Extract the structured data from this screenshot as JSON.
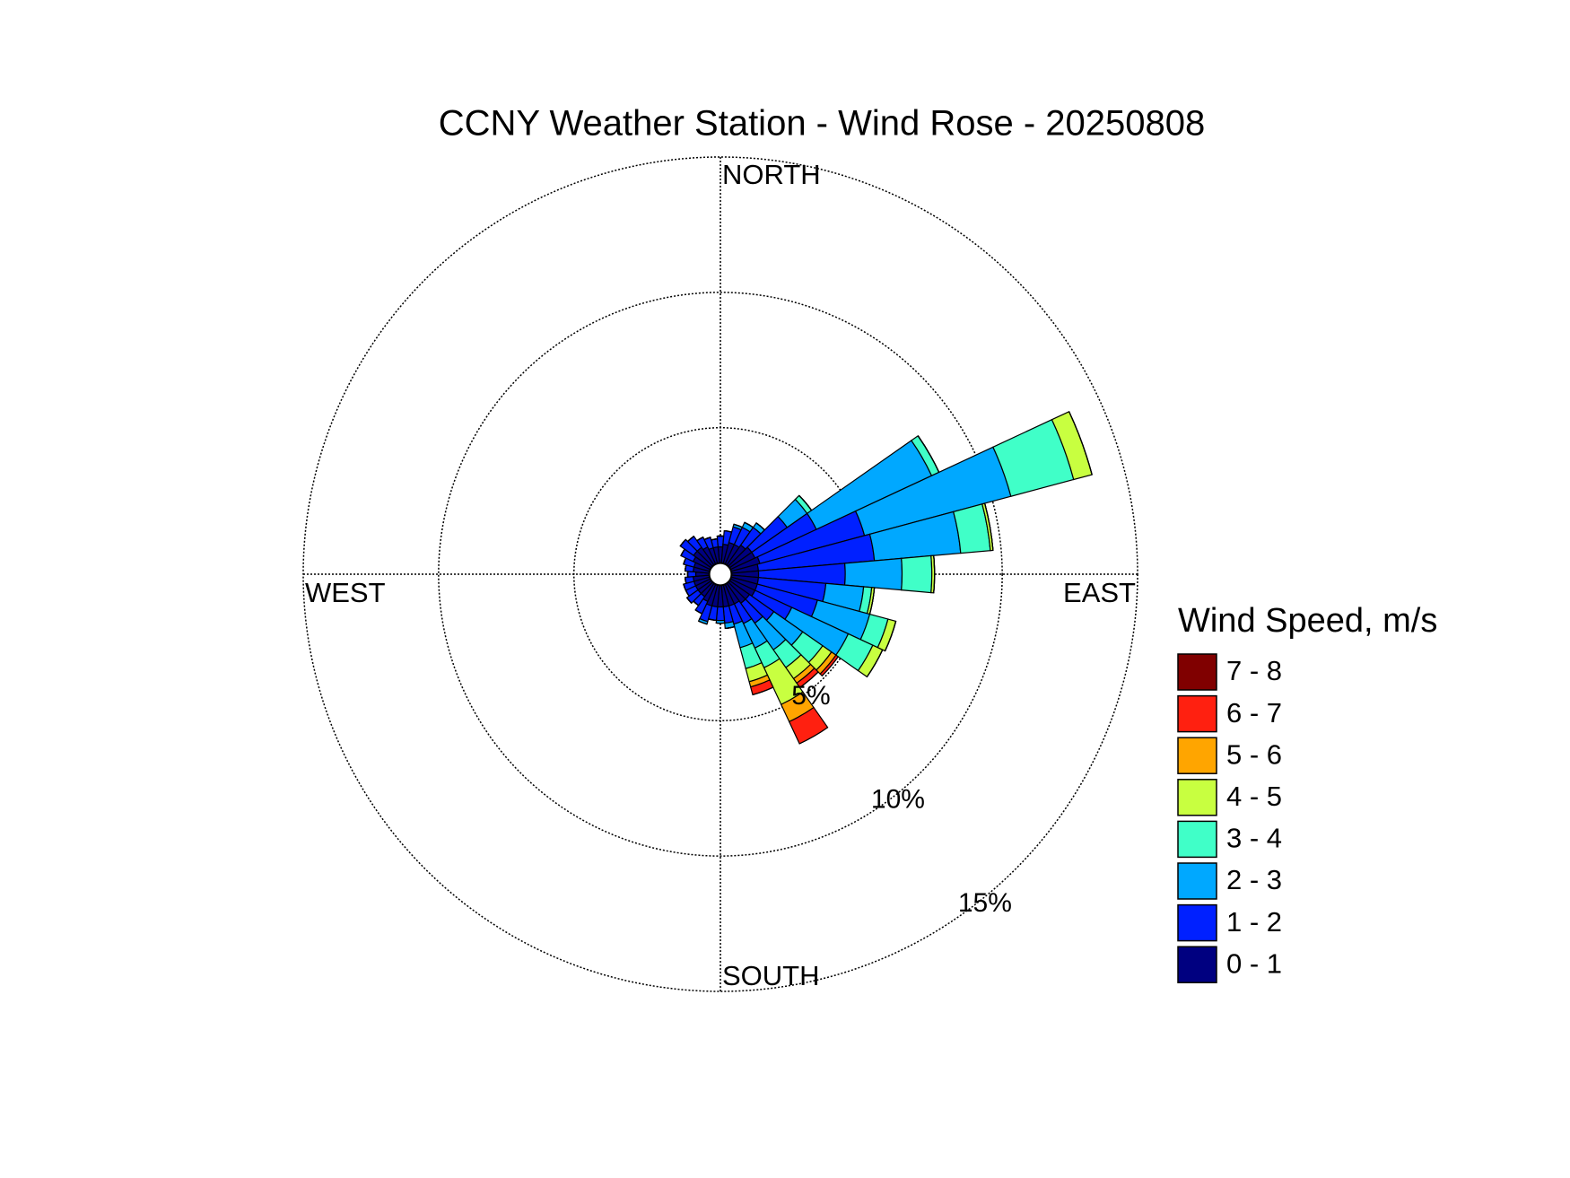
{
  "chart_data": {
    "type": "windrose",
    "title": "CCNY Weather Station - Wind Rose - 20250808",
    "legend_title": "Wind Speed, m/s",
    "compass": {
      "north": "NORTH",
      "east": "EAST",
      "south": "SOUTH",
      "west": "WEST"
    },
    "theta": [
      0,
      10,
      20,
      30,
      40,
      50,
      60,
      70,
      80,
      90,
      100,
      110,
      120,
      130,
      140,
      150,
      160,
      170,
      180,
      190,
      200,
      210,
      220,
      230,
      240,
      250,
      260,
      270,
      280,
      290,
      300,
      310,
      320,
      330,
      340,
      350
    ],
    "rlim": [
      0,
      15
    ],
    "rticks": [
      {
        "value": 5,
        "label": "5%"
      },
      {
        "value": 10,
        "label": "10%"
      },
      {
        "value": 15,
        "label": "15%"
      }
    ],
    "series": [
      {
        "name": "0 - 1",
        "color": "#000080",
        "values": [
          0.6,
          0.7,
          0.8,
          0.8,
          0.9,
          1.0,
          1.0,
          1.1,
          1.0,
          1.0,
          1.0,
          1.0,
          1.0,
          0.9,
          0.9,
          0.8,
          0.8,
          0.8,
          0.8,
          0.8,
          0.8,
          0.7,
          0.6,
          0.6,
          0.6,
          0.6,
          0.6,
          0.5,
          0.6,
          0.6,
          0.7,
          0.8,
          0.8,
          0.7,
          0.6,
          0.6
        ]
      },
      {
        "name": "1 - 2",
        "color": "#0020ff",
        "values": [
          0.4,
          0.5,
          0.6,
          0.7,
          0.8,
          1.6,
          2.5,
          4.0,
          4.3,
          3.2,
          2.5,
          2.3,
          1.5,
          1.1,
          0.9,
          0.8,
          0.7,
          0.6,
          0.5,
          0.5,
          0.6,
          0.5,
          0.4,
          0.5,
          0.4,
          0.4,
          0.3,
          0.3,
          0.3,
          0.4,
          0.5,
          0.6,
          0.5,
          0.4,
          0.4,
          0.3
        ]
      },
      {
        "name": "2 - 3",
        "color": "#00a8ff",
        "values": [
          0,
          0,
          0.1,
          0.2,
          0.2,
          0.9,
          4.7,
          5.6,
          3.2,
          2.1,
          1.4,
          2.0,
          2.3,
          1.3,
          1.2,
          1.0,
          0.9,
          0.2,
          0.1,
          0,
          0.1,
          0,
          0,
          0,
          0,
          0,
          0,
          0,
          0,
          0,
          0,
          0,
          0,
          0,
          0,
          0
        ]
      },
      {
        "name": "3 - 4",
        "color": "#40ffc8",
        "values": [
          0,
          0,
          0,
          0,
          0,
          0.2,
          0.3,
          2.4,
          1.1,
          1.1,
          0.3,
          0.7,
          1.0,
          0.9,
          0.8,
          0.8,
          0.8,
          0,
          0,
          0,
          0,
          0,
          0,
          0,
          0,
          0,
          0,
          0,
          0,
          0,
          0,
          0,
          0,
          0,
          0,
          0
        ]
      },
      {
        "name": "4 - 5",
        "color": "#c8ff40",
        "values": [
          0,
          0,
          0,
          0,
          0,
          0,
          0,
          0.7,
          0.1,
          0.1,
          0.1,
          0.3,
          0.4,
          0.4,
          0.5,
          1.5,
          0.5,
          0,
          0,
          0,
          0,
          0,
          0,
          0,
          0,
          0,
          0,
          0,
          0,
          0,
          0,
          0,
          0,
          0,
          0,
          0
        ]
      },
      {
        "name": "5 - 6",
        "color": "#ffa500",
        "values": [
          0,
          0,
          0,
          0,
          0,
          0,
          0,
          0,
          0,
          0,
          0,
          0,
          0,
          0.2,
          0.2,
          0.7,
          0.2,
          0,
          0,
          0,
          0,
          0,
          0,
          0,
          0,
          0,
          0,
          0,
          0,
          0,
          0,
          0,
          0,
          0,
          0,
          0
        ]
      },
      {
        "name": "6 - 7",
        "color": "#ff2010",
        "values": [
          0,
          0,
          0,
          0,
          0,
          0,
          0,
          0,
          0,
          0,
          0,
          0,
          0,
          0.1,
          0.2,
          0.9,
          0.3,
          0,
          0,
          0,
          0,
          0,
          0,
          0,
          0,
          0,
          0,
          0,
          0,
          0,
          0,
          0,
          0,
          0,
          0,
          0
        ]
      },
      {
        "name": "7 - 8",
        "color": "#800000",
        "values": [
          0,
          0,
          0,
          0,
          0,
          0,
          0,
          0,
          0,
          0,
          0,
          0,
          0,
          0,
          0,
          0,
          0,
          0,
          0,
          0,
          0,
          0,
          0,
          0,
          0,
          0,
          0,
          0,
          0,
          0,
          0,
          0,
          0,
          0,
          0,
          0
        ]
      }
    ]
  }
}
